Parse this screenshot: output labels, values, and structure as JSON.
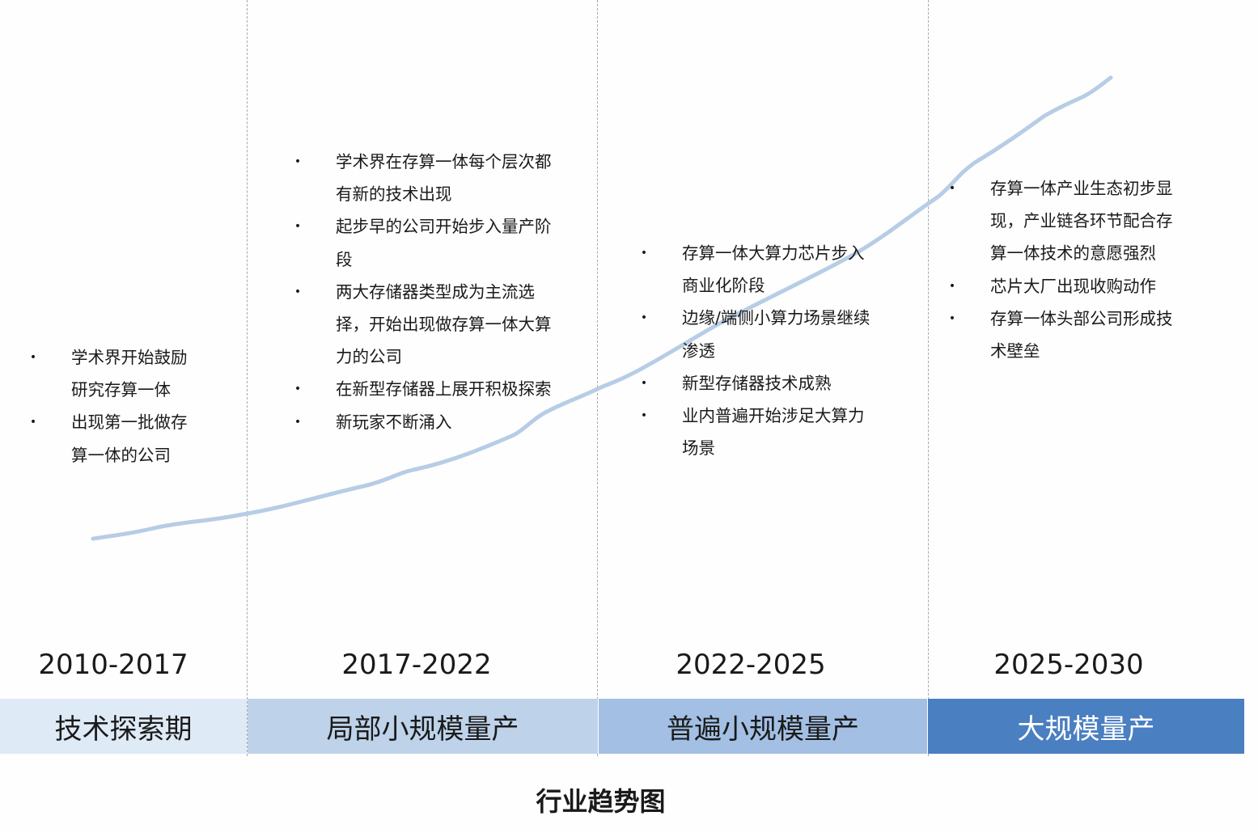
{
  "caption": "行业趋势图",
  "colors": {
    "trend_line": "#b7cde6",
    "stage_1": "#deeaf6",
    "stage_2": "#bed3ea",
    "stage_3": "#a3c0e4",
    "stage_4": "#4a7fc1",
    "stage_4_text": "#ffffff",
    "divider": "#a8a8a8"
  },
  "phases": [
    {
      "period": "2010-2017",
      "stage": "技术探索期",
      "bullets": [
        "学术界开始鼓励研究存算一体",
        "出现第一批做存算一体的公司"
      ]
    },
    {
      "period": "2017-2022",
      "stage": "局部小规模量产",
      "bullets": [
        "学术界在存算一体每个层次都有新的技术出现",
        "起步早的公司开始步入量产阶段",
        "两大存储器类型成为主流选择，开始出现做存算一体大算力的公司",
        "在新型存储器上展开积极探索",
        "新玩家不断涌入"
      ]
    },
    {
      "period": "2022-2025",
      "stage": "普遍小规模量产",
      "bullets": [
        "存算一体大算力芯片步入商业化阶段",
        "边缘/端侧小算力场景继续渗透",
        "新型存储器技术成熟",
        "业内普遍开始涉足大算力场景"
      ]
    },
    {
      "period": "2025-2030",
      "stage": "大规模量产",
      "bullets": [
        "存算一体产业生态初步显现，产业链各环节配合存算一体技术的意愿强烈",
        "芯片大厂出现收购动作",
        "存算一体头部公司形成技术壁垒"
      ]
    }
  ]
}
